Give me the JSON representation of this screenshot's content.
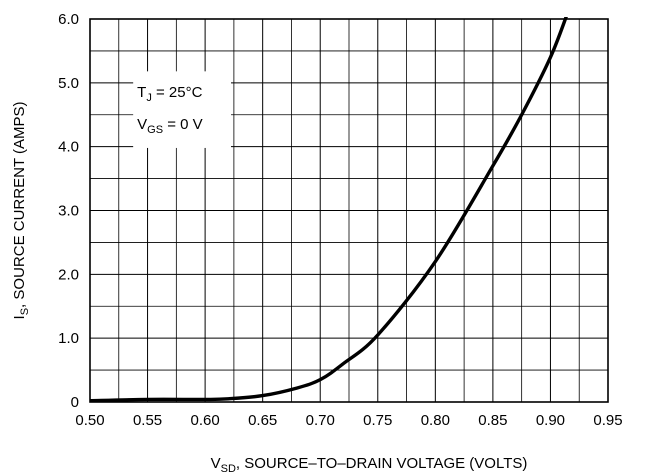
{
  "chart_data": {
    "type": "line",
    "xlabel": {
      "prefix": "V",
      "subscript": "SD",
      "text": ", SOURCE–TO–DRAIN VOLTAGE (VOLTS)"
    },
    "ylabel": {
      "prefix": "I",
      "subscript": "S",
      "text": ", SOURCE CURRENT (AMPS)"
    },
    "xlim": [
      0.5,
      0.95
    ],
    "ylim": [
      0,
      6.0
    ],
    "x_ticks": [
      "0.50",
      "0.55",
      "0.60",
      "0.65",
      "0.70",
      "0.75",
      "0.80",
      "0.85",
      "0.90",
      "0.95"
    ],
    "x_tick_values": [
      0.5,
      0.55,
      0.6,
      0.65,
      0.7,
      0.75,
      0.8,
      0.85,
      0.9,
      0.95
    ],
    "y_ticks": [
      "0",
      "1.0",
      "2.0",
      "3.0",
      "4.0",
      "5.0",
      "6.0"
    ],
    "y_tick_values": [
      0,
      1.0,
      2.0,
      3.0,
      4.0,
      5.0,
      6.0
    ],
    "x_minor_gridlines": [
      0.525,
      0.575,
      0.625,
      0.675,
      0.725,
      0.775,
      0.825,
      0.875,
      0.925
    ],
    "y_minor_gridlines": [
      0.5,
      1.5,
      2.5,
      3.5,
      4.5,
      5.5
    ],
    "grid": true,
    "annotation": {
      "line1": {
        "prefix": "T",
        "subscript": "J",
        "text": " = 25°C"
      },
      "line2": {
        "prefix": "V",
        "subscript": "GS",
        "text": " = 0 V"
      }
    },
    "series": [
      {
        "color": "#000000",
        "x": [
          0.5,
          0.55,
          0.6,
          0.62,
          0.65,
          0.68,
          0.7,
          0.72,
          0.75,
          0.8,
          0.85,
          0.875,
          0.9,
          0.915
        ],
        "y": [
          0.02,
          0.04,
          0.04,
          0.05,
          0.1,
          0.22,
          0.35,
          0.6,
          1.05,
          2.2,
          3.7,
          4.5,
          5.4,
          6.1
        ]
      }
    ]
  }
}
